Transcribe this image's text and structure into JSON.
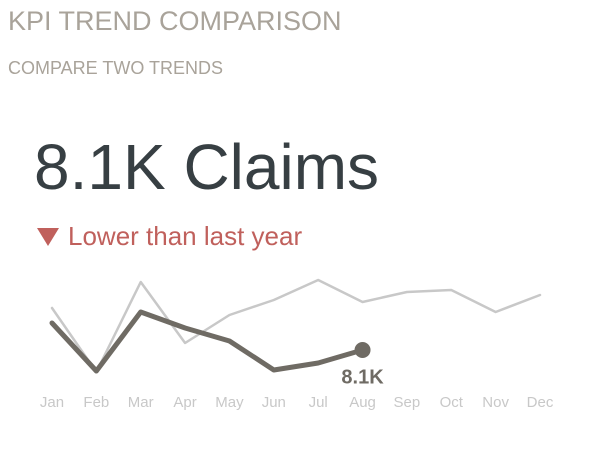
{
  "chart_data": {
    "type": "line",
    "title": "KPI TREND COMPARISON",
    "subtitle": "COMPARE TWO TRENDS",
    "kpi": "8.1K Claims",
    "status": "Lower than last year",
    "categories": [
      "Jan",
      "Feb",
      "Mar",
      "Apr",
      "May",
      "Jun",
      "Jul",
      "Aug",
      "Sep",
      "Oct",
      "Nov",
      "Dec"
    ],
    "series": [
      {
        "color": "#c8c8c8",
        "values": [
          8940,
          7660,
          9460,
          8240,
          8800,
          9100,
          9500,
          9060,
          9260,
          9300,
          8860,
          9200
        ]
      },
      {
        "color": "#6f6b64",
        "values": [
          8640,
          7680,
          8860,
          8540,
          8280,
          7700,
          7840,
          8100,
          null,
          null,
          null,
          null
        ],
        "value_labels": [
          null,
          null,
          null,
          null,
          null,
          null,
          null,
          "8.1K",
          null,
          null,
          null,
          null
        ]
      }
    ],
    "ylim": [
      7500,
      9600
    ]
  }
}
